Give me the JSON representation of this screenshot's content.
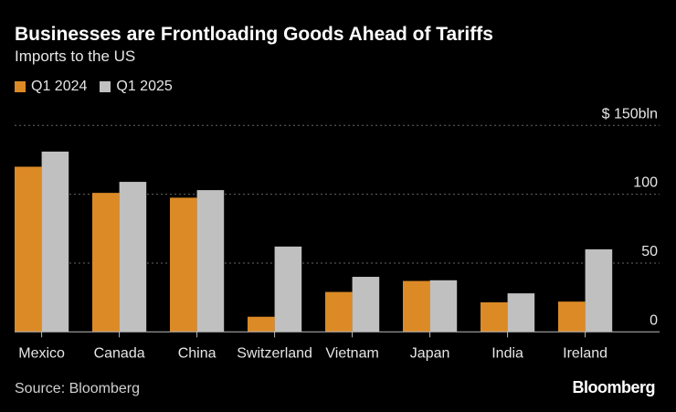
{
  "chart_data": {
    "type": "bar",
    "title": "Businesses are Frontloading Goods Ahead of Tariffs",
    "subtitle": "Imports to the US",
    "categories": [
      "Mexico",
      "Canada",
      "China",
      "Switzerland",
      "Vietnam",
      "Japan",
      "India",
      "Ireland"
    ],
    "series": [
      {
        "name": "Q1 2024",
        "color": "#dc8a26",
        "values": [
          120,
          101,
          97.5,
          11,
          29,
          37,
          21.5,
          22
        ]
      },
      {
        "name": "Q1 2025",
        "color": "#c0c0c0",
        "values": [
          131,
          109,
          103,
          62,
          40,
          37.5,
          28,
          60
        ]
      }
    ],
    "yticks": [
      {
        "value": 0,
        "label": "0"
      },
      {
        "value": 50,
        "label": "50"
      },
      {
        "value": 100,
        "label": "100"
      },
      {
        "value": 150,
        "label": "$ 150bln"
      }
    ],
    "ylim": [
      0,
      150
    ],
    "grid": true,
    "legend_position": "top-left",
    "source": "Source: Bloomberg",
    "brand": "Bloomberg"
  }
}
